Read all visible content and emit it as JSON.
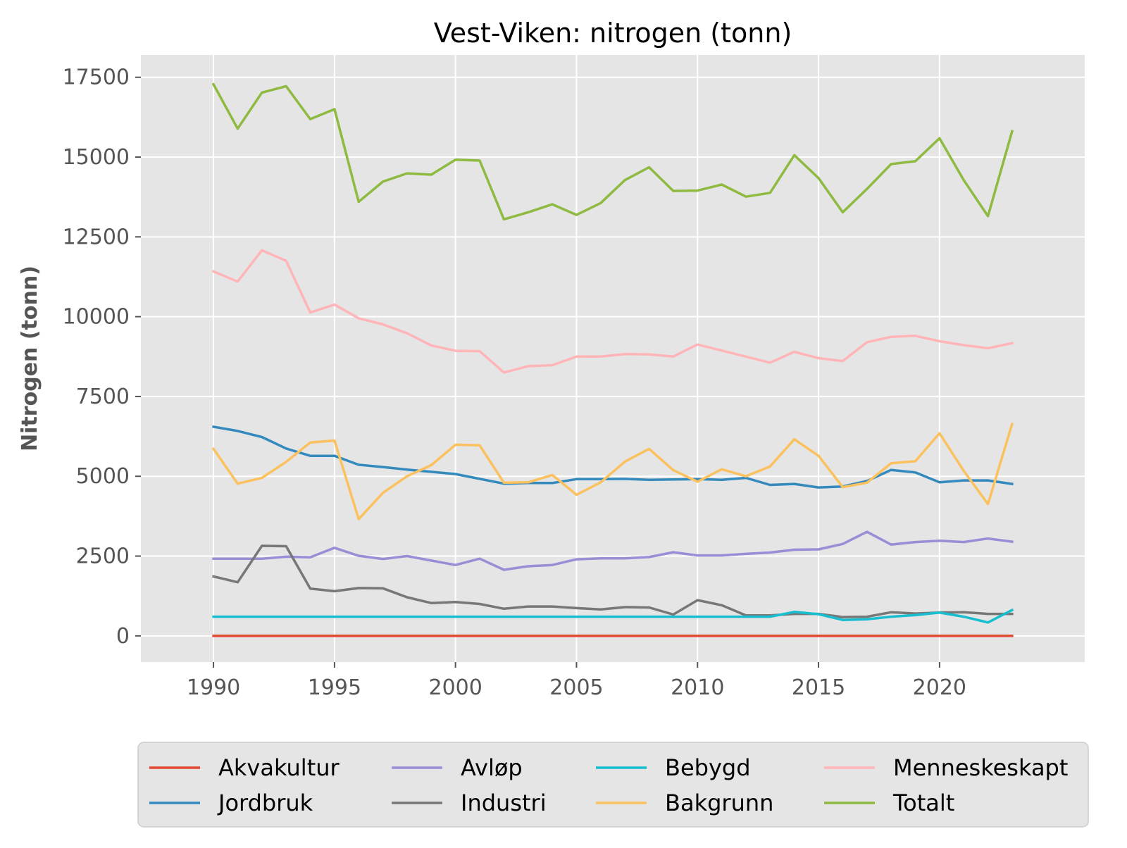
{
  "chart_data": {
    "type": "line",
    "title": "Vest-Viken: nitrogen (tonn)",
    "xlabel": "",
    "ylabel": "Nitrogen (tonn)",
    "xlim": [
      1987,
      2026
    ],
    "ylim": [
      -820,
      18200
    ],
    "x_ticks": [
      1990,
      1995,
      2000,
      2005,
      2010,
      2015,
      2020
    ],
    "y_ticks": [
      0,
      2500,
      5000,
      7500,
      10000,
      12500,
      15000,
      17500
    ],
    "grid": true,
    "legend_position": "bottom",
    "x": [
      1990,
      1991,
      1992,
      1993,
      1994,
      1995,
      1996,
      1997,
      1998,
      1999,
      2000,
      2001,
      2002,
      2003,
      2004,
      2005,
      2006,
      2007,
      2008,
      2009,
      2010,
      2011,
      2012,
      2013,
      2014,
      2015,
      2016,
      2017,
      2018,
      2019,
      2020,
      2021,
      2022,
      2023
    ],
    "series": [
      {
        "name": "Akvakultur",
        "color": "#E24A33",
        "values": [
          0,
          0,
          0,
          0,
          0,
          0,
          0,
          0,
          0,
          0,
          0,
          0,
          0,
          0,
          0,
          0,
          0,
          0,
          0,
          0,
          0,
          0,
          0,
          0,
          0,
          0,
          0,
          0,
          0,
          0,
          0,
          0,
          0,
          0
        ]
      },
      {
        "name": "Jordbruk",
        "color": "#348ABD",
        "values": [
          6550,
          6420,
          6230,
          5870,
          5640,
          5640,
          5360,
          5290,
          5210,
          5140,
          5070,
          4920,
          4770,
          4790,
          4790,
          4910,
          4910,
          4920,
          4890,
          4900,
          4910,
          4890,
          4950,
          4730,
          4760,
          4650,
          4680,
          4850,
          5200,
          5120,
          4810,
          4870,
          4870,
          4760
        ]
      },
      {
        "name": "Avløp",
        "color": "#988ED5",
        "values": [
          2420,
          2420,
          2420,
          2480,
          2460,
          2760,
          2510,
          2410,
          2500,
          2360,
          2220,
          2420,
          2070,
          2180,
          2220,
          2400,
          2430,
          2430,
          2470,
          2620,
          2520,
          2520,
          2570,
          2610,
          2700,
          2710,
          2880,
          3260,
          2860,
          2940,
          2980,
          2940,
          3050,
          2950
        ]
      },
      {
        "name": "Industri",
        "color": "#777777",
        "values": [
          1860,
          1680,
          2820,
          2810,
          1480,
          1400,
          1500,
          1490,
          1210,
          1030,
          1060,
          1000,
          850,
          920,
          920,
          870,
          830,
          900,
          890,
          670,
          1120,
          960,
          640,
          640,
          690,
          690,
          590,
          600,
          740,
          700,
          730,
          740,
          690,
          690
        ]
      },
      {
        "name": "Bebygd",
        "color": "#17BECF",
        "values": [
          600,
          600,
          600,
          600,
          600,
          600,
          600,
          600,
          600,
          600,
          600,
          600,
          600,
          600,
          600,
          600,
          600,
          600,
          600,
          600,
          600,
          600,
          600,
          600,
          750,
          680,
          500,
          520,
          600,
          650,
          730,
          600,
          420,
          810
        ]
      },
      {
        "name": "Bakgrunn",
        "color": "#FBC15E",
        "values": [
          5860,
          4770,
          4950,
          5450,
          6060,
          6120,
          3660,
          4480,
          5000,
          5350,
          5990,
          5970,
          4800,
          4810,
          5040,
          4420,
          4810,
          5460,
          5860,
          5190,
          4830,
          5220,
          5000,
          5310,
          6160,
          5640,
          4660,
          4800,
          5410,
          5470,
          6350,
          5170,
          4130,
          6640
        ]
      },
      {
        "name": "Menneskeskapt",
        "color": "#FFB5B8",
        "values": [
          11420,
          11100,
          12080,
          11750,
          10130,
          10380,
          9950,
          9760,
          9480,
          9100,
          8930,
          8920,
          8250,
          8450,
          8480,
          8750,
          8750,
          8830,
          8820,
          8750,
          9130,
          8940,
          8750,
          8560,
          8900,
          8700,
          8610,
          9200,
          9370,
          9400,
          9230,
          9110,
          9010,
          9170
        ]
      },
      {
        "name": "Totalt",
        "color": "#8EBA42",
        "values": [
          17280,
          15890,
          17020,
          17220,
          16190,
          16500,
          13600,
          14230,
          14490,
          14450,
          14920,
          14890,
          13050,
          13270,
          13520,
          13190,
          13560,
          14280,
          14680,
          13940,
          13950,
          14140,
          13760,
          13880,
          15060,
          14340,
          13270,
          14000,
          14780,
          14870,
          15590,
          14280,
          13150,
          15810
        ]
      }
    ]
  }
}
